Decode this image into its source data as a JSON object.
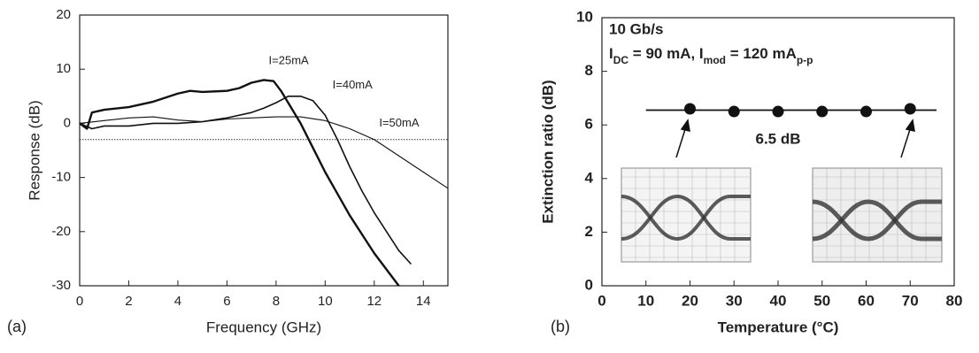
{
  "chart_data": [
    {
      "type": "line",
      "panel_label": "(a)",
      "x_label": "Frequency (GHz)",
      "y_label": "Response (dB)",
      "xlim": [
        0,
        15
      ],
      "ylim": [
        -30,
        20
      ],
      "xticks": [
        0,
        2,
        4,
        6,
        8,
        10,
        12,
        14
      ],
      "yticks": [
        -30,
        -20,
        -10,
        0,
        10,
        20
      ],
      "hline": -3,
      "series": [
        {
          "name": "I=25mA",
          "color": "#111",
          "width": 2.4,
          "x": [
            0,
            0.3,
            0.5,
            1,
            2,
            3,
            4,
            4.5,
            5,
            6,
            6.5,
            7,
            7.5,
            7.9,
            8.2,
            8.6,
            9,
            9.5,
            10,
            10.5,
            11,
            11.5,
            12,
            12.5,
            13
          ],
          "values": [
            0,
            -1,
            2,
            2.5,
            3,
            4,
            5.5,
            6,
            5.8,
            6,
            6.5,
            7.5,
            8,
            7.8,
            6,
            3,
            0,
            -4.5,
            -9,
            -13,
            -17,
            -20.5,
            -24,
            -27,
            -30
          ]
        },
        {
          "name": "I=40mA",
          "color": "#111",
          "width": 1.6,
          "x": [
            0,
            0.5,
            1,
            2,
            3,
            4,
            5,
            6,
            7,
            7.5,
            8,
            8.5,
            9,
            9.5,
            10,
            10.5,
            11,
            11.5,
            12,
            12.5,
            13,
            13.5
          ],
          "values": [
            0,
            -1,
            -0.5,
            -0.5,
            0,
            0,
            0.3,
            1,
            2,
            2.8,
            3.8,
            5,
            5,
            4.2,
            1.5,
            -3,
            -8,
            -12.5,
            -16.5,
            -20,
            -23.5,
            -26
          ]
        },
        {
          "name": "I=50mA",
          "color": "#111",
          "width": 1.1,
          "x": [
            0,
            1,
            2,
            3,
            4,
            5,
            6,
            7,
            8,
            9,
            10,
            11,
            12,
            13,
            14,
            15
          ],
          "values": [
            0,
            0.5,
            1,
            1.2,
            0.6,
            0.3,
            0.8,
            1,
            1.2,
            1.2,
            0.5,
            -1,
            -3,
            -6,
            -9,
            -12
          ]
        }
      ],
      "label_at": [
        [
          7.7,
          11.5
        ],
        [
          10.3,
          7
        ],
        [
          12.2,
          0
        ]
      ]
    },
    {
      "type": "scatter",
      "panel_label": "(b)",
      "x_label": "Temperature (°C)",
      "y_label": "Extinction ratio (dB)",
      "xlim": [
        0,
        80
      ],
      "ylim": [
        0,
        10
      ],
      "xticks": [
        0,
        10,
        20,
        30,
        40,
        50,
        60,
        70,
        80
      ],
      "yticks": [
        0,
        2,
        4,
        6,
        8,
        10
      ],
      "x": [
        20,
        30,
        40,
        50,
        60,
        70
      ],
      "values": [
        6.6,
        6.5,
        6.5,
        6.5,
        6.5,
        6.6
      ],
      "color": "#111",
      "reference_line": {
        "x": [
          10,
          76
        ],
        "y": 6.55
      },
      "rate": "10 Gb/s",
      "condition": [
        "I",
        "DC",
        " = 90 mA, I",
        "mod",
        " = 120 mA",
        "p-p"
      ],
      "level_label": "6.5 dB"
    }
  ]
}
